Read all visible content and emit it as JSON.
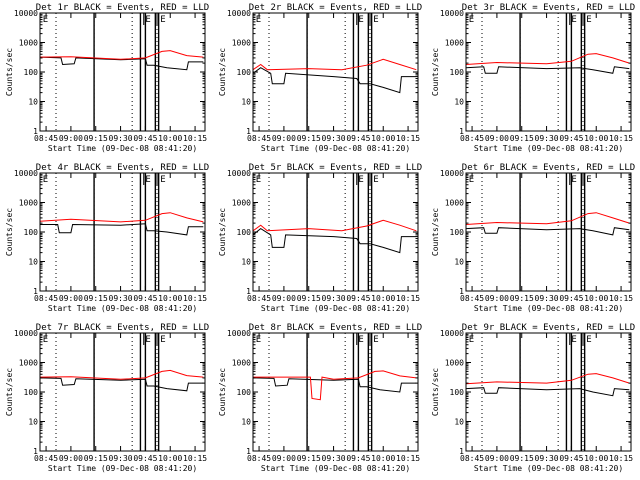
{
  "chart_data": {
    "type": "line",
    "y_scale": "log",
    "ylim": [
      1,
      10000
    ],
    "ylabel": "Counts/sec",
    "xlabel": "Start Time (09-Dec-08 08:41:20)",
    "x_tick_labels": [
      "08:45",
      "09:00",
      "09:15",
      "09:30",
      "09:45",
      "10:00",
      "10:15"
    ],
    "x_tick_times": [
      "08:45",
      "09:00",
      "09:15",
      "09:30",
      "09:45",
      "10:00",
      "10:15"
    ],
    "y_tick_labels": [
      "1",
      "10",
      "100",
      "1000",
      "10000"
    ],
    "y_ticks": [
      1,
      10,
      100,
      1000,
      10000
    ],
    "x_start": "08:41:20",
    "x_end": "10:21",
    "series_colors": {
      "events": "#000000",
      "lld": "#ff0000"
    },
    "markers": {
      "dotted_times": [
        "08:51",
        "09:14",
        "09:37",
        "09:52"
      ],
      "solid_times": [
        "09:14",
        "09:42",
        "09:45",
        "09:51",
        "09:53"
      ],
      "labels": [
        {
          "text": "E",
          "time": "08:43"
        },
        {
          "text": "E",
          "time": "09:45"
        },
        {
          "text": "E",
          "time": "09:54"
        }
      ],
      "label_gap_times": [
        "09:44",
        "09:52"
      ]
    },
    "panels": [
      {
        "title": "Det 1r BLACK = Events, RED = LLD",
        "series": [
          {
            "key": "events",
            "x": [
              "08:41:20",
              "08:54",
              "08:55",
              "09:02",
              "09:03",
              "09:30",
              "09:45",
              "09:46",
              "09:50",
              "09:58",
              "10:10",
              "10:11",
              "10:20"
            ],
            "y": [
              320,
              300,
              180,
              190,
              300,
              260,
              280,
              170,
              170,
              140,
              120,
              220,
              220
            ]
          },
          {
            "key": "lld",
            "x": [
              "08:41:20",
              "09:00",
              "09:30",
              "09:45",
              "09:55",
              "10:00",
              "10:10",
              "10:20"
            ],
            "y": [
              320,
              330,
              270,
              300,
              500,
              530,
              360,
              320
            ]
          }
        ]
      },
      {
        "title": "Det 2r BLACK = Events, RED = LLD",
        "series": [
          {
            "key": "events",
            "x": [
              "08:41:20",
              "08:46",
              "08:52",
              "08:53",
              "09:00",
              "09:01",
              "09:30",
              "09:44",
              "09:46",
              "09:52",
              "10:00",
              "10:10",
              "10:11",
              "10:20"
            ],
            "y": [
              90,
              140,
              90,
              40,
              40,
              90,
              70,
              60,
              40,
              40,
              30,
              20,
              70,
              70
            ]
          },
          {
            "key": "lld",
            "x": [
              "08:41:20",
              "08:46",
              "08:50",
              "09:15",
              "09:35",
              "09:50",
              "10:00",
              "10:10",
              "10:20"
            ],
            "y": [
              120,
              180,
              120,
              130,
              120,
              170,
              270,
              180,
              120
            ]
          }
        ]
      },
      {
        "title": "Det 3r BLACK = Events, RED = LLD",
        "series": [
          {
            "key": "events",
            "x": [
              "08:41:20",
              "08:52",
              "08:53",
              "09:00",
              "09:01",
              "09:30",
              "09:50",
              "09:58",
              "10:10",
              "10:11",
              "10:20"
            ],
            "y": [
              140,
              150,
              90,
              90,
              150,
              130,
              140,
              120,
              90,
              150,
              130
            ]
          },
          {
            "key": "lld",
            "x": [
              "08:41:20",
              "09:00",
              "09:30",
              "09:45",
              "09:55",
              "10:00",
              "10:10",
              "10:20"
            ],
            "y": [
              180,
              210,
              190,
              230,
              400,
              420,
              300,
              200
            ]
          }
        ]
      },
      {
        "title": "Det 4r BLACK = Events, RED = LLD",
        "series": [
          {
            "key": "events",
            "x": [
              "08:41:20",
              "08:52",
              "08:53",
              "09:00",
              "09:01",
              "09:30",
              "09:45",
              "09:46",
              "09:50",
              "09:58",
              "10:10",
              "10:11",
              "10:20"
            ],
            "y": [
              180,
              180,
              95,
              95,
              180,
              170,
              190,
              110,
              110,
              100,
              80,
              150,
              150
            ]
          },
          {
            "key": "lld",
            "x": [
              "08:41:20",
              "09:00",
              "09:30",
              "09:45",
              "09:55",
              "10:00",
              "10:10",
              "10:20"
            ],
            "y": [
              230,
              270,
              220,
              250,
              420,
              450,
              300,
              220
            ]
          }
        ]
      },
      {
        "title": "Det 5r BLACK = Events, RED = LLD",
        "series": [
          {
            "key": "events",
            "x": [
              "08:41:20",
              "08:46",
              "08:52",
              "08:53",
              "09:00",
              "09:01",
              "09:30",
              "09:44",
              "09:46",
              "09:52",
              "10:00",
              "10:10",
              "10:11",
              "10:20"
            ],
            "y": [
              80,
              130,
              80,
              30,
              30,
              80,
              70,
              60,
              40,
              40,
              30,
              20,
              70,
              70
            ]
          },
          {
            "key": "lld",
            "x": [
              "08:41:20",
              "08:46",
              "08:50",
              "09:15",
              "09:35",
              "09:50",
              "10:00",
              "10:10",
              "10:20"
            ],
            "y": [
              110,
              170,
              110,
              130,
              110,
              160,
              250,
              170,
              110
            ]
          }
        ]
      },
      {
        "title": "Det 6r BLACK = Events, RED = LLD",
        "series": [
          {
            "key": "events",
            "x": [
              "08:41:20",
              "08:52",
              "08:53",
              "09:00",
              "09:01",
              "09:30",
              "09:50",
              "09:58",
              "10:10",
              "10:11",
              "10:20"
            ],
            "y": [
              130,
              140,
              90,
              90,
              140,
              120,
              130,
              110,
              80,
              140,
              120
            ]
          },
          {
            "key": "lld",
            "x": [
              "08:41:20",
              "09:00",
              "09:30",
              "09:45",
              "09:55",
              "10:00",
              "10:10",
              "10:20"
            ],
            "y": [
              180,
              210,
              190,
              240,
              420,
              450,
              300,
              200
            ]
          }
        ]
      },
      {
        "title": "Det 7r BLACK = Events, RED = LLD",
        "series": [
          {
            "key": "events",
            "x": [
              "08:41:20",
              "08:54",
              "08:55",
              "09:02",
              "09:03",
              "09:30",
              "09:45",
              "09:46",
              "09:50",
              "09:58",
              "10:10",
              "10:11",
              "10:20"
            ],
            "y": [
              300,
              290,
              170,
              180,
              280,
              250,
              270,
              160,
              160,
              130,
              110,
              200,
              200
            ]
          },
          {
            "key": "lld",
            "x": [
              "08:41:20",
              "09:00",
              "09:30",
              "09:45",
              "09:55",
              "10:00",
              "10:10",
              "10:20"
            ],
            "y": [
              320,
              330,
              270,
              300,
              500,
              540,
              360,
              320
            ]
          }
        ]
      },
      {
        "title": "Det 8r BLACK = Events, RED = LLD",
        "series": [
          {
            "key": "events",
            "x": [
              "08:41:20",
              "08:54",
              "08:55",
              "09:02",
              "09:03",
              "09:30",
              "09:45",
              "09:46",
              "09:50",
              "09:58",
              "10:10",
              "10:11",
              "10:20"
            ],
            "y": [
              300,
              290,
              160,
              170,
              280,
              250,
              270,
              150,
              150,
              120,
              100,
              200,
              200
            ]
          },
          {
            "key": "lld",
            "x": [
              "08:41:20",
              "09:16",
              "09:17",
              "09:22",
              "09:23",
              "09:30",
              "09:45",
              "09:55",
              "10:00",
              "10:10",
              "10:20"
            ],
            "y": [
              320,
              320,
              60,
              55,
              320,
              270,
              300,
              500,
              520,
              350,
              300
            ]
          }
        ]
      },
      {
        "title": "Det 9r BLACK = Events, RED = LLD",
        "series": [
          {
            "key": "events",
            "x": [
              "08:41:20",
              "08:52",
              "08:53",
              "09:00",
              "09:01",
              "09:30",
              "09:50",
              "09:58",
              "10:10",
              "10:11",
              "10:20"
            ],
            "y": [
              130,
              140,
              90,
              90,
              140,
              120,
              130,
              100,
              75,
              130,
              120
            ]
          },
          {
            "key": "lld",
            "x": [
              "08:41:20",
              "09:00",
              "09:30",
              "09:45",
              "09:55",
              "10:00",
              "10:10",
              "10:20"
            ],
            "y": [
              190,
              220,
              200,
              250,
              400,
              420,
              300,
              200
            ]
          }
        ]
      }
    ]
  }
}
